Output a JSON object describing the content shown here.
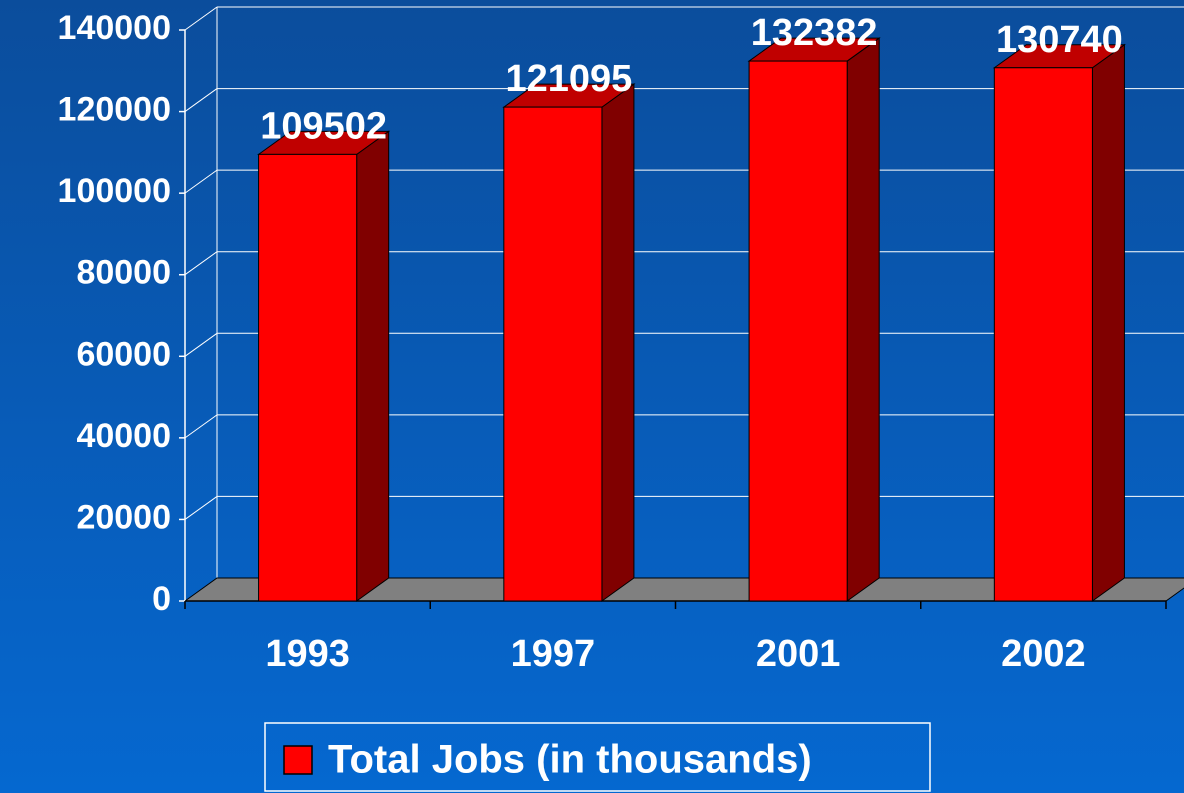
{
  "chart_data": {
    "type": "bar3d",
    "categories": [
      "1993",
      "1997",
      "2001",
      "2002"
    ],
    "series": [
      {
        "name": "Total Jobs (in thousands)",
        "color": "#ff0000",
        "values": [
          109502,
          121095,
          132382,
          130740
        ]
      }
    ],
    "ylim": [
      0,
      140000
    ],
    "yticks": [
      0,
      20000,
      40000,
      60000,
      80000,
      100000,
      120000,
      140000
    ],
    "grid": true,
    "legend": "bottom"
  }
}
